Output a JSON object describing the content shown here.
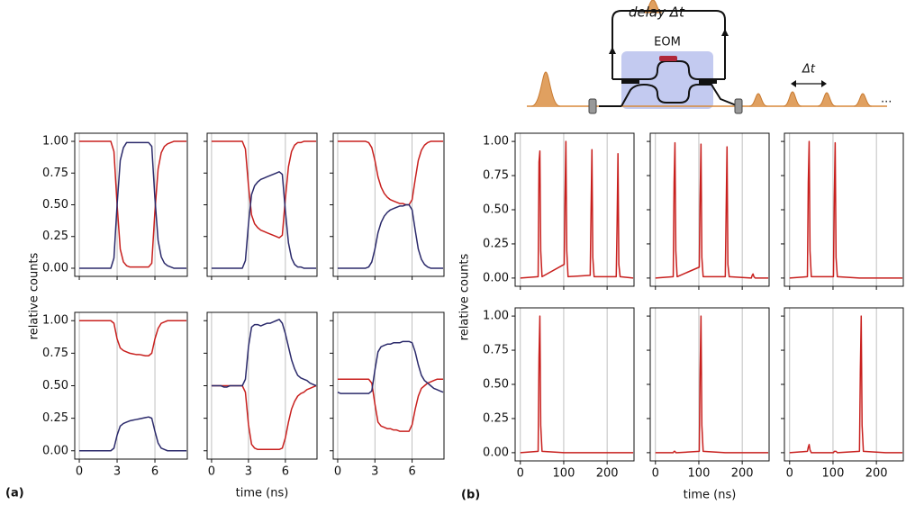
{
  "chart_data": [
    {
      "type": "line",
      "label": "(a)",
      "xlabel": "time (ns)",
      "ylabel": "relative counts",
      "xlim": [
        -0.36,
        8.57
      ],
      "xticks": [
        0,
        3,
        6
      ],
      "ylim": [
        -0.064,
        1.064
      ],
      "yticks": [
        {
          "value": 0,
          "label": "0.00"
        },
        {
          "value": 0.25,
          "label": "0.25"
        },
        {
          "value": 0.5,
          "label": "0.50"
        },
        {
          "value": 0.75,
          "label": "0.75"
        },
        {
          "value": 1,
          "label": "1.00"
        }
      ],
      "grid": "x",
      "x": [
        0,
        0.25,
        0.5,
        0.75,
        1,
        1.25,
        1.5,
        1.75,
        2,
        2.25,
        2.5,
        2.75,
        3,
        3.25,
        3.5,
        3.75,
        4,
        4.25,
        4.5,
        4.75,
        5,
        5.25,
        5.5,
        5.75,
        6,
        6.25,
        6.5,
        6.75,
        7,
        7.25,
        7.5,
        7.75,
        8,
        8.25,
        8.5
      ],
      "subplots": [
        {
          "series": [
            {
              "color": "#c8201e",
              "values": [
                1,
                1,
                1,
                1,
                1,
                1,
                1,
                1,
                1,
                1,
                1,
                0.92,
                0.5,
                0.15,
                0.05,
                0.02,
                0.01,
                0.01,
                0.01,
                0.01,
                0.01,
                0.01,
                0.01,
                0.04,
                0.45,
                0.78,
                0.91,
                0.96,
                0.98,
                0.99,
                1,
                1,
                1,
                1,
                1
              ]
            },
            {
              "color": "#2b2a6b",
              "values": [
                0,
                0,
                0,
                0,
                0,
                0,
                0,
                0,
                0,
                0,
                0,
                0.08,
                0.5,
                0.85,
                0.95,
                0.99,
                0.99,
                0.99,
                0.99,
                0.99,
                0.99,
                0.99,
                0.99,
                0.96,
                0.55,
                0.22,
                0.09,
                0.04,
                0.02,
                0.01,
                0,
                0,
                0,
                0,
                0
              ]
            }
          ]
        },
        {
          "series": [
            {
              "color": "#c8201e",
              "values": [
                1,
                1,
                1,
                1,
                1,
                1,
                1,
                1,
                1,
                1,
                1,
                0.94,
                0.65,
                0.42,
                0.35,
                0.32,
                0.3,
                0.29,
                0.28,
                0.27,
                0.26,
                0.25,
                0.24,
                0.26,
                0.55,
                0.8,
                0.92,
                0.97,
                0.99,
                0.99,
                1,
                1,
                1,
                1,
                1
              ]
            },
            {
              "color": "#2b2a6b",
              "values": [
                0,
                0,
                0,
                0,
                0,
                0,
                0,
                0,
                0,
                0,
                0,
                0.06,
                0.35,
                0.58,
                0.65,
                0.68,
                0.7,
                0.71,
                0.72,
                0.73,
                0.74,
                0.75,
                0.76,
                0.74,
                0.45,
                0.2,
                0.08,
                0.03,
                0.01,
                0.01,
                0,
                0,
                0,
                0,
                0
              ]
            }
          ]
        },
        {
          "series": [
            {
              "color": "#c8201e",
              "values": [
                1,
                1,
                1,
                1,
                1,
                1,
                1,
                1,
                1,
                1,
                0.99,
                0.95,
                0.85,
                0.72,
                0.64,
                0.59,
                0.56,
                0.54,
                0.53,
                0.52,
                0.51,
                0.51,
                0.5,
                0.5,
                0.54,
                0.7,
                0.85,
                0.93,
                0.97,
                0.99,
                1,
                1,
                1,
                1,
                1
              ]
            },
            {
              "color": "#2b2a6b",
              "values": [
                0,
                0,
                0,
                0,
                0,
                0,
                0,
                0,
                0,
                0,
                0.01,
                0.05,
                0.15,
                0.28,
                0.36,
                0.41,
                0.44,
                0.46,
                0.47,
                0.48,
                0.49,
                0.49,
                0.5,
                0.5,
                0.46,
                0.3,
                0.15,
                0.07,
                0.03,
                0.01,
                0,
                0,
                0,
                0,
                0
              ]
            }
          ]
        },
        {
          "series": [
            {
              "color": "#c8201e",
              "values": [
                1,
                1,
                1,
                1,
                1,
                1,
                1,
                1,
                1,
                1,
                1,
                0.98,
                0.86,
                0.79,
                0.77,
                0.76,
                0.75,
                0.745,
                0.74,
                0.74,
                0.735,
                0.73,
                0.73,
                0.75,
                0.86,
                0.94,
                0.98,
                0.99,
                1,
                1,
                1,
                1,
                1,
                1,
                1
              ]
            },
            {
              "color": "#2b2a6b",
              "values": [
                0,
                0,
                0,
                0,
                0,
                0,
                0,
                0,
                0,
                0,
                0,
                0.02,
                0.12,
                0.19,
                0.21,
                0.22,
                0.23,
                0.235,
                0.24,
                0.245,
                0.25,
                0.255,
                0.26,
                0.25,
                0.15,
                0.06,
                0.02,
                0.01,
                0,
                0,
                0,
                0,
                0,
                0,
                0
              ]
            }
          ]
        },
        {
          "series": [
            {
              "color": "#c8201e",
              "values": [
                0.5,
                0.5,
                0.5,
                0.5,
                0.5,
                0.5,
                0.5,
                0.5,
                0.5,
                0.5,
                0.5,
                0.45,
                0.2,
                0.05,
                0.02,
                0.01,
                0.01,
                0.01,
                0.01,
                0.01,
                0.01,
                0.01,
                0.01,
                0.02,
                0.1,
                0.22,
                0.32,
                0.38,
                0.42,
                0.44,
                0.45,
                0.47,
                0.48,
                0.49,
                0.5
              ]
            },
            {
              "color": "#2b2a6b",
              "values": [
                0.5,
                0.5,
                0.5,
                0.5,
                0.49,
                0.49,
                0.5,
                0.5,
                0.5,
                0.5,
                0.5,
                0.55,
                0.8,
                0.95,
                0.97,
                0.97,
                0.96,
                0.97,
                0.98,
                0.98,
                0.99,
                1,
                1.01,
                0.98,
                0.9,
                0.8,
                0.7,
                0.63,
                0.58,
                0.56,
                0.55,
                0.54,
                0.52,
                0.51,
                0.5
              ]
            }
          ]
        },
        {
          "series": [
            {
              "color": "#c8201e",
              "values": [
                0.55,
                0.55,
                0.55,
                0.55,
                0.55,
                0.55,
                0.55,
                0.55,
                0.55,
                0.55,
                0.55,
                0.52,
                0.36,
                0.22,
                0.19,
                0.18,
                0.17,
                0.17,
                0.16,
                0.16,
                0.15,
                0.15,
                0.15,
                0.15,
                0.2,
                0.32,
                0.42,
                0.48,
                0.5,
                0.52,
                0.53,
                0.54,
                0.55,
                0.55,
                0.55
              ]
            },
            {
              "color": "#2b2a6b",
              "values": [
                0.45,
                0.44,
                0.44,
                0.44,
                0.44,
                0.44,
                0.44,
                0.44,
                0.44,
                0.44,
                0.44,
                0.46,
                0.62,
                0.76,
                0.8,
                0.81,
                0.82,
                0.82,
                0.83,
                0.83,
                0.83,
                0.84,
                0.84,
                0.84,
                0.83,
                0.76,
                0.66,
                0.58,
                0.54,
                0.52,
                0.5,
                0.48,
                0.47,
                0.46,
                0.45
              ]
            }
          ]
        }
      ]
    },
    {
      "type": "line",
      "label": "(b)",
      "xlabel": "time (ns)",
      "ylabel": "relative counts",
      "xlim": [
        -12,
        262
      ],
      "xticks": [
        0,
        100,
        200
      ],
      "ylim": [
        -0.06,
        1.06
      ],
      "yticks": [
        {
          "value": 0,
          "label": "0.00"
        },
        {
          "value": 0.25,
          "label": "0.25"
        },
        {
          "value": 0.5,
          "label": "0.50"
        },
        {
          "value": 0.75,
          "label": "0.75"
        },
        {
          "value": 1,
          "label": "1.00"
        }
      ],
      "grid": "x",
      "x": [
        0,
        41,
        43,
        45,
        47,
        50,
        101,
        103,
        105,
        107,
        110,
        161,
        163,
        165,
        167,
        170,
        221,
        223,
        225,
        227,
        230,
        260
      ],
      "subplots": [
        {
          "series": [
            {
              "color": "#c8201e",
              "values": [
                0,
                0.01,
                0.85,
                0.93,
                0.2,
                0.01,
                0.1,
                0.6,
                1,
                0.2,
                0.01,
                0.02,
                0.5,
                0.94,
                0.15,
                0.01,
                0.01,
                0.4,
                0.91,
                0.1,
                0.01,
                0
              ]
            }
          ]
        },
        {
          "series": [
            {
              "color": "#c8201e",
              "values": [
                0,
                0.01,
                0.7,
                0.99,
                0.2,
                0.01,
                0.08,
                0.6,
                0.98,
                0.15,
                0.01,
                0.01,
                0.5,
                0.96,
                0.1,
                0.01,
                0,
                0.02,
                0.03,
                0.01,
                0,
                0
              ]
            }
          ]
        },
        {
          "series": [
            {
              "color": "#c8201e",
              "values": [
                0,
                0.01,
                0.7,
                1,
                0.2,
                0.01,
                0.01,
                0.6,
                0.99,
                0.15,
                0.01,
                0,
                0,
                0,
                0,
                0,
                0,
                0,
                0,
                0,
                0,
                0
              ]
            }
          ]
        },
        {
          "series": [
            {
              "color": "#c8201e",
              "values": [
                0,
                0.01,
                0.7,
                1,
                0.2,
                0.01,
                0,
                0,
                0,
                0,
                0,
                0,
                0,
                0,
                0,
                0,
                0,
                0,
                0,
                0,
                0,
                0
              ]
            }
          ]
        },
        {
          "series": [
            {
              "color": "#c8201e",
              "values": [
                0,
                0,
                0.01,
                0.01,
                0,
                0,
                0.01,
                0.6,
                1,
                0.2,
                0.01,
                0,
                0,
                0,
                0,
                0,
                0,
                0,
                0,
                0,
                0,
                0
              ]
            }
          ]
        },
        {
          "series": [
            {
              "color": "#c8201e",
              "values": [
                0,
                0.01,
                0.04,
                0.06,
                0.02,
                0,
                0,
                0.01,
                0.01,
                0.01,
                0,
                0.01,
                0.6,
                1,
                0.2,
                0.01,
                0,
                0,
                0,
                0,
                0,
                0
              ]
            }
          ]
        }
      ]
    }
  ],
  "diagram": {
    "delay_label": "delay Δt",
    "modulator_label": "EOM",
    "spacing_label": "Δt",
    "continuation": "..."
  }
}
